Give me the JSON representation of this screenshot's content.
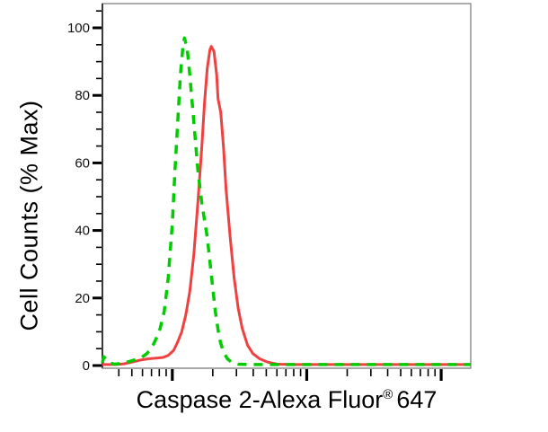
{
  "figure": {
    "background": "#ffffff",
    "frame_color": "#8a8a8a",
    "left_axis_color": "#3a3a3a",
    "bottom_axis_color": "#999999",
    "tick_color": "#000000"
  },
  "axes": {
    "y": {
      "label": "Cell Counts (% Max)",
      "tick_values": [
        0,
        20,
        40,
        60,
        80,
        100
      ],
      "tick_labels": [
        "0",
        "20",
        "40",
        "60",
        "80",
        "100"
      ],
      "minor_step": 5,
      "range": [
        0,
        107
      ]
    },
    "x": {
      "label_main": "Caspase 2-Alexa Fluor",
      "label_registered": "®",
      "label_suffix": "647",
      "scale": "log10",
      "range_log10": [
        0.48,
        3.22
      ],
      "major_ticks_log10": [
        1,
        2,
        3
      ],
      "tick_labels": []
    }
  },
  "chart_data": {
    "type": "line",
    "subtype": "flow-cytometry-histogram-overlay",
    "title": "",
    "xlabel": "Caspase 2-Alexa Fluor® 647",
    "ylabel": "Cell Counts (% Max)",
    "x_scale": "log10",
    "xlim_log10": [
      0.48,
      3.22
    ],
    "ylim": [
      0,
      107
    ],
    "grid": false,
    "legend": "none",
    "series": [
      {
        "name": "red-solid-curve",
        "color": "#f04040",
        "style": "solid",
        "width": 3,
        "peak": {
          "x_log10": 1.29,
          "y_percent": 94.5
        },
        "points": [
          [
            0.48,
            0.3
          ],
          [
            0.58,
            0.3
          ],
          [
            0.64,
            0.5
          ],
          [
            0.7,
            1.0
          ],
          [
            0.76,
            1.6
          ],
          [
            0.82,
            2.0
          ],
          [
            0.88,
            2.2
          ],
          [
            0.93,
            2.4
          ],
          [
            0.97,
            3.0
          ],
          [
            1.01,
            4.5
          ],
          [
            1.04,
            7
          ],
          [
            1.07,
            10
          ],
          [
            1.1,
            15
          ],
          [
            1.13,
            22
          ],
          [
            1.16,
            33
          ],
          [
            1.19,
            48
          ],
          [
            1.22,
            65
          ],
          [
            1.24,
            78
          ],
          [
            1.26,
            88
          ],
          [
            1.28,
            93.5
          ],
          [
            1.29,
            94.5
          ],
          [
            1.31,
            93
          ],
          [
            1.33,
            86
          ],
          [
            1.34,
            79
          ],
          [
            1.36,
            75
          ],
          [
            1.38,
            65
          ],
          [
            1.4,
            52
          ],
          [
            1.43,
            38
          ],
          [
            1.46,
            26
          ],
          [
            1.49,
            17
          ],
          [
            1.52,
            11
          ],
          [
            1.56,
            6
          ],
          [
            1.6,
            3.5
          ],
          [
            1.65,
            2
          ],
          [
            1.71,
            1
          ],
          [
            1.78,
            0.4
          ],
          [
            1.9,
            0.3
          ],
          [
            2.1,
            0.3
          ],
          [
            2.4,
            0.3
          ],
          [
            2.7,
            0.3
          ],
          [
            3.0,
            0.3
          ],
          [
            3.22,
            0.3
          ]
        ]
      },
      {
        "name": "green-dashed-curve",
        "color": "#00cc00",
        "style": "dashed",
        "width": 3.5,
        "peak": {
          "x_log10": 1.09,
          "y_percent": 97
        },
        "points": [
          [
            0.48,
            0.8
          ],
          [
            0.49,
            2.6
          ],
          [
            0.51,
            1.8
          ],
          [
            0.53,
            0.8
          ],
          [
            0.57,
            0.4
          ],
          [
            0.62,
            0.6
          ],
          [
            0.68,
            1.2
          ],
          [
            0.73,
            1.8
          ],
          [
            0.77,
            2.4
          ],
          [
            0.81,
            3.5
          ],
          [
            0.85,
            5.5
          ],
          [
            0.88,
            8
          ],
          [
            0.91,
            11
          ],
          [
            0.94,
            16
          ],
          [
            0.97,
            26
          ],
          [
            1.0,
            42
          ],
          [
            1.02,
            58
          ],
          [
            1.04,
            72
          ],
          [
            1.06,
            86
          ],
          [
            1.08,
            95
          ],
          [
            1.09,
            97
          ],
          [
            1.11,
            94
          ],
          [
            1.13,
            86
          ],
          [
            1.16,
            72
          ],
          [
            1.19,
            58
          ],
          [
            1.22,
            48
          ],
          [
            1.26,
            38
          ],
          [
            1.29,
            27
          ],
          [
            1.32,
            16
          ],
          [
            1.35,
            8
          ],
          [
            1.38,
            4
          ],
          [
            1.41,
            2
          ],
          [
            1.44,
            1
          ],
          [
            1.49,
            0.4
          ],
          [
            1.6,
            0.3
          ],
          [
            1.8,
            0.3
          ],
          [
            2.0,
            0.3
          ],
          [
            2.2,
            0.3
          ],
          [
            2.4,
            0.3
          ],
          [
            2.6,
            0.3
          ],
          [
            2.8,
            0.3
          ],
          [
            3.0,
            0.3
          ],
          [
            3.22,
            0.3
          ]
        ]
      }
    ]
  }
}
